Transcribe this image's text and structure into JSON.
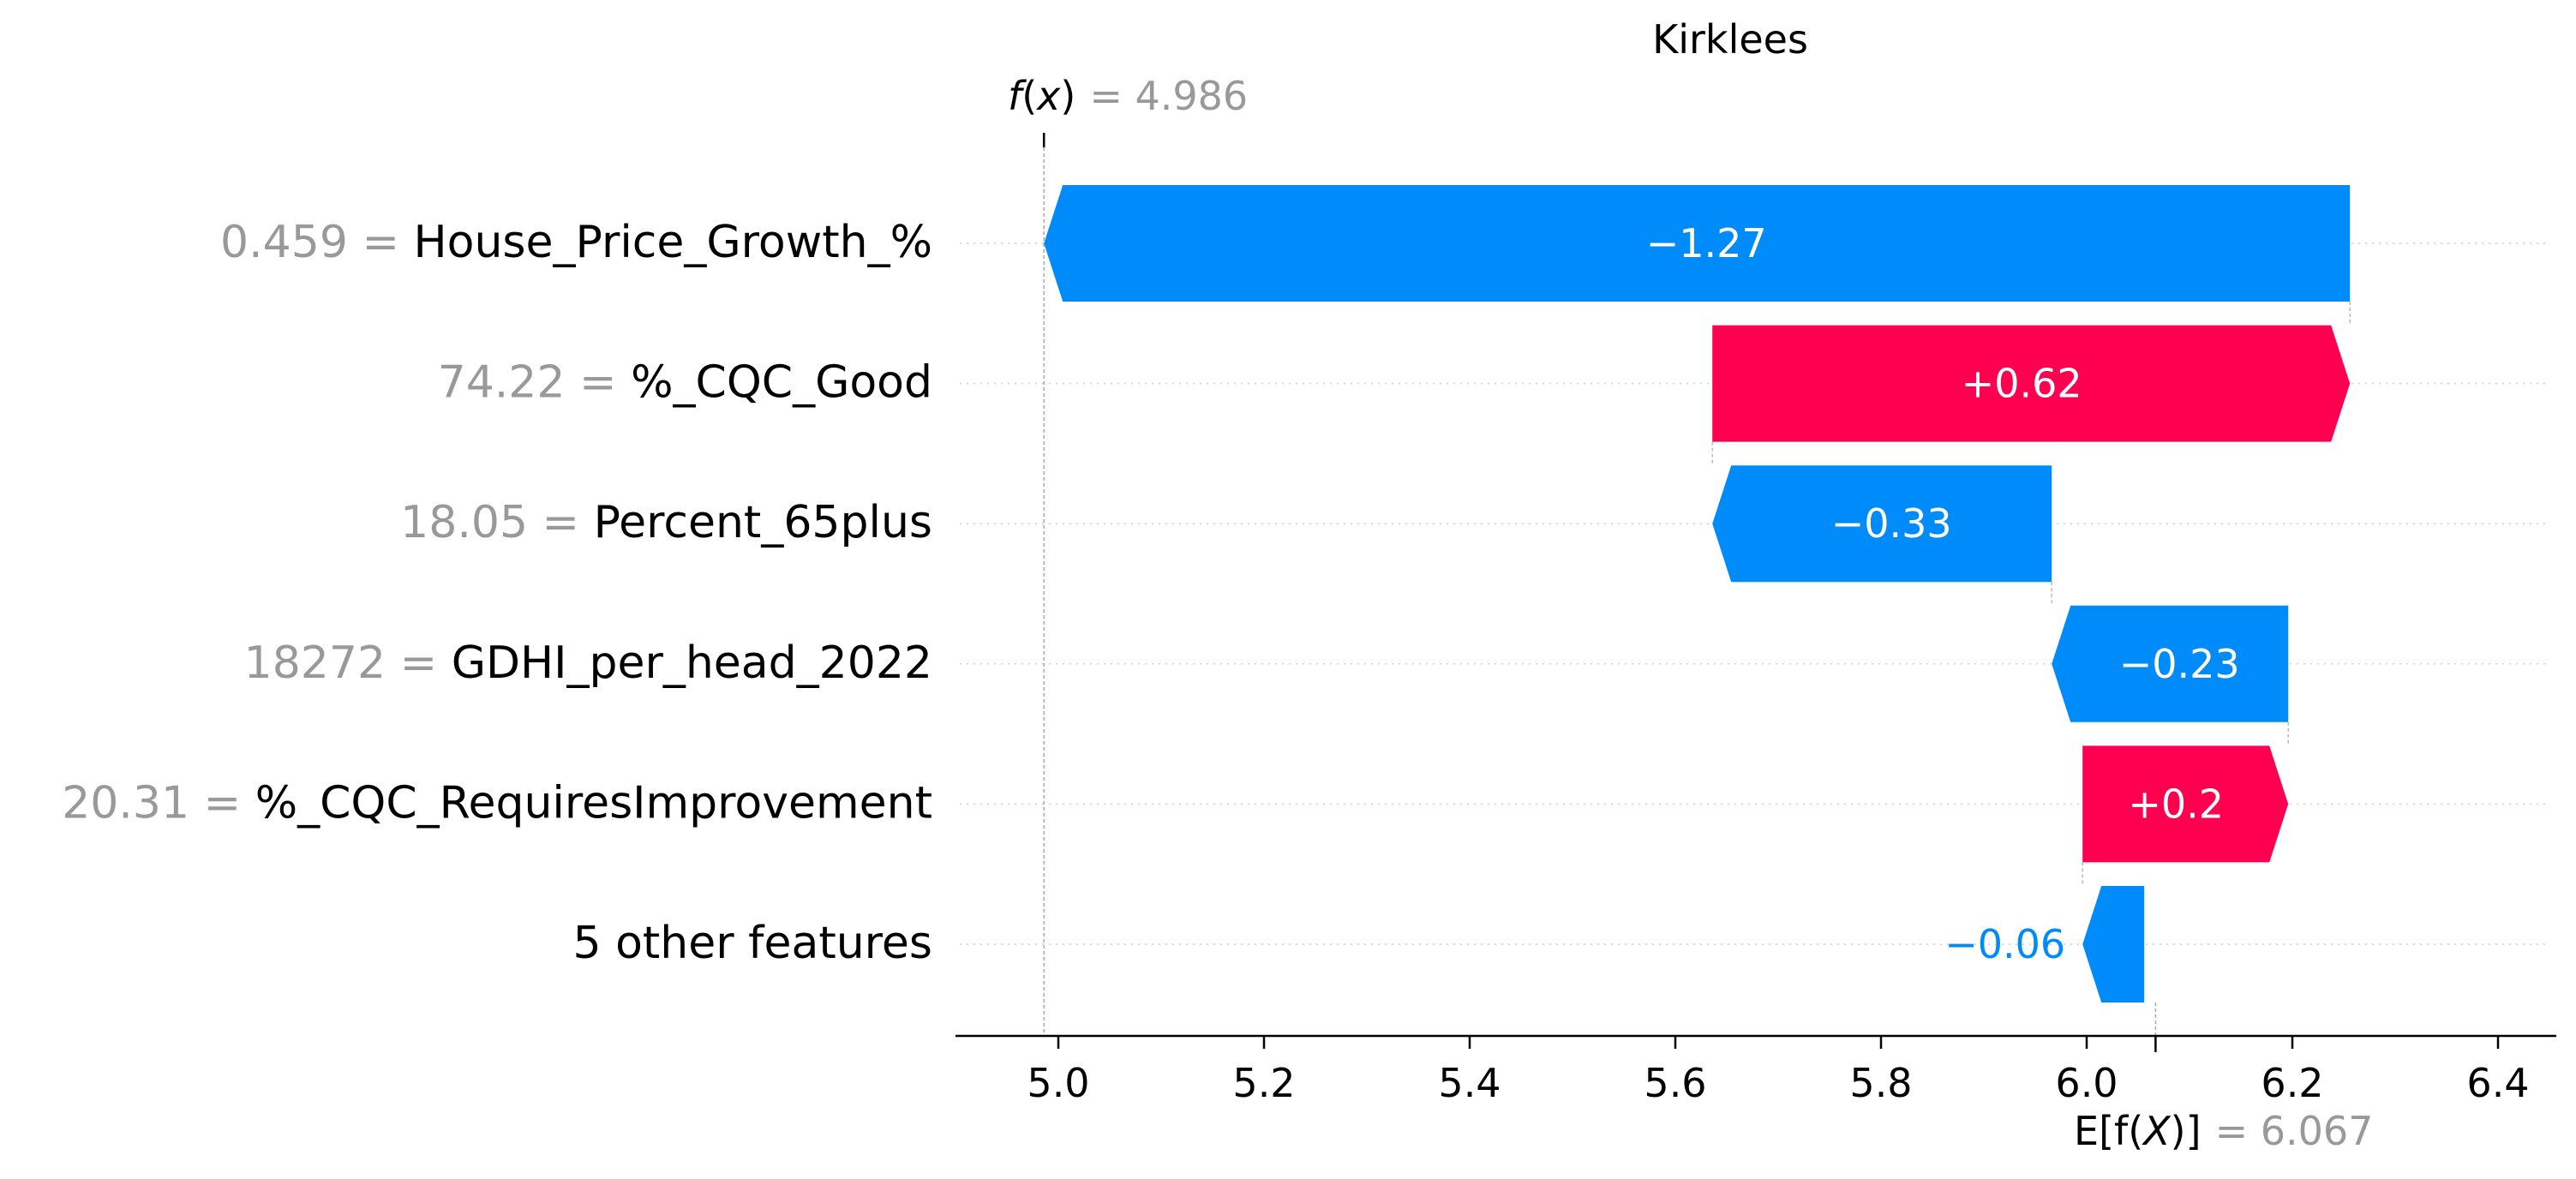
{
  "chart_data": {
    "type": "waterfall",
    "title": "Kirklees",
    "fx": {
      "label_prefix": "f",
      "label_arg": "x",
      "value_text": "= 4.986",
      "value": 4.986
    },
    "expected": {
      "label_prefix": "E[f(",
      "label_arg": "X",
      "label_suffix": ")]",
      "value_text": "= 6.067",
      "value": 6.067
    },
    "features": [
      {
        "value_text": "0.459 =",
        "name": "House_Price_Growth_%",
        "shap": -1.27,
        "shap_label": "−1.27"
      },
      {
        "value_text": "74.22 =",
        "name": "%_CQC_Good",
        "shap": 0.62,
        "shap_label": "+0.62"
      },
      {
        "value_text": "18.05 =",
        "name": "Percent_65plus",
        "shap": -0.33,
        "shap_label": "−0.33"
      },
      {
        "value_text": "18272 =",
        "name": "GDHI_per_head_2022",
        "shap": -0.23,
        "shap_label": "−0.23"
      },
      {
        "value_text": "20.31 =",
        "name": "%_CQC_RequiresImprovement",
        "shap": 0.2,
        "shap_label": "+0.2"
      },
      {
        "value_text": "",
        "name": "5 other features",
        "shap": -0.06,
        "shap_label": "−0.06"
      }
    ],
    "xaxis": {
      "ticks": [
        5.0,
        5.2,
        5.4,
        5.6,
        5.8,
        6.0,
        6.2,
        6.4
      ],
      "tick_labels": [
        "5.0",
        "5.2",
        "5.4",
        "5.6",
        "5.8",
        "6.0",
        "6.2",
        "6.4"
      ],
      "xlim": [
        4.9,
        6.43
      ]
    },
    "colors": {
      "positive": "#ff0051",
      "negative": "#008bfb",
      "gray_text": "#999999",
      "text": "#000000",
      "bar_label": "#ffffff"
    }
  }
}
